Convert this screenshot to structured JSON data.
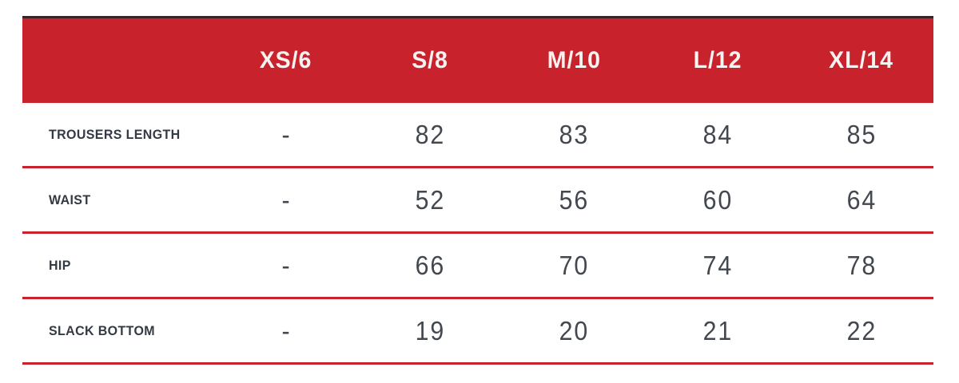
{
  "chart_data": {
    "type": "table",
    "title": "",
    "columns": [
      "",
      "XS/6",
      "S/8",
      "M/10",
      "L/12",
      "XL/14"
    ],
    "rows": [
      {
        "label": "TROUSERS LENGTH",
        "values": [
          "-",
          "82",
          "83",
          "84",
          "85"
        ]
      },
      {
        "label": "WAIST",
        "values": [
          "-",
          "52",
          "56",
          "60",
          "64"
        ]
      },
      {
        "label": "HIP",
        "values": [
          "-",
          "66",
          "70",
          "74",
          "78"
        ]
      },
      {
        "label": "SLACK BOTTOM",
        "values": [
          "-",
          "19",
          "20",
          "21",
          "22"
        ]
      }
    ],
    "colors": {
      "accent_red": "#c8232c",
      "header_text": "#f7f3f1",
      "label_text": "#333a43",
      "value_text": "#43474f",
      "top_rule": "#3a2327"
    },
    "layout": {
      "header_background": "red band",
      "row_dividers": "red horizontal rules",
      "first_column": "row labels, left aligned",
      "data_columns": "center aligned"
    }
  }
}
